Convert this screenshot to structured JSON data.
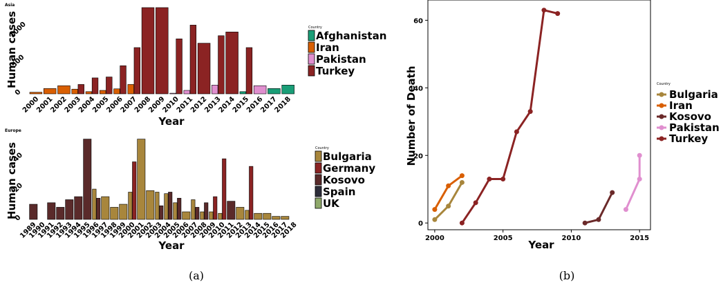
{
  "chart_data": [
    {
      "type": "bar",
      "title": "Asia",
      "xlabel": "Year",
      "ylabel": "Human cases",
      "ylim": [
        0,
        1380
      ],
      "yticks": [
        0,
        500,
        1000
      ],
      "categories": [
        "2000",
        "2001",
        "2002",
        "2003",
        "2004",
        "2005",
        "2006",
        "2007",
        "2008",
        "2009",
        "2010",
        "2011",
        "2012",
        "2013",
        "2014",
        "2015",
        "2016",
        "2017",
        "2018"
      ],
      "legend_title": "Country",
      "legend_position": "right",
      "series": [
        {
          "name": "Afghanistan",
          "color": "#1a9e77",
          "values": [
            0,
            0,
            0,
            0,
            0,
            0,
            0,
            0,
            0,
            0,
            0,
            0,
            0,
            0,
            0,
            35,
            0,
            85,
            140
          ]
        },
        {
          "name": "Iran",
          "color": "#d95f02",
          "values": [
            25,
            85,
            130,
            75,
            35,
            55,
            80,
            150,
            0,
            0,
            0,
            0,
            0,
            0,
            0,
            0,
            0,
            0,
            0
          ]
        },
        {
          "name": "Pakistan",
          "color": "#e08fcf",
          "values": [
            0,
            0,
            0,
            0,
            0,
            0,
            0,
            0,
            0,
            0,
            10,
            55,
            0,
            140,
            0,
            0,
            130,
            0,
            0
          ]
        },
        {
          "name": "Turkey",
          "color": "#8b2323",
          "values": [
            0,
            0,
            0,
            150,
            255,
            270,
            450,
            740,
            1380,
            1380,
            880,
            1100,
            810,
            930,
            990,
            740,
            0,
            0,
            0
          ]
        }
      ]
    },
    {
      "type": "bar",
      "title": "Europe",
      "xlabel": "Year",
      "ylabel": "Human cases",
      "ylim": [
        0,
        56
      ],
      "yticks": [
        0,
        20,
        40
      ],
      "categories": [
        "1989",
        "1990",
        "1991",
        "1992",
        "1993",
        "1994",
        "1995",
        "1996",
        "1997",
        "1998",
        "1999",
        "2000",
        "2001",
        "2002",
        "2003",
        "2004",
        "2005",
        "2006",
        "2007",
        "2008",
        "2009",
        "2010",
        "2011",
        "2012",
        "2013",
        "2014",
        "2015",
        "2016",
        "2017",
        "2018"
      ],
      "legend_title": "Country",
      "legend_position": "right",
      "series": [
        {
          "name": "Bulgaria",
          "color": "#a8863c",
          "values": [
            0,
            0,
            0,
            0,
            0,
            0,
            0,
            20,
            15,
            8,
            10,
            18,
            53,
            19,
            18,
            17,
            11,
            5,
            13,
            5,
            5,
            4,
            0,
            8,
            6,
            4,
            4,
            2,
            2,
            0
          ]
        },
        {
          "name": "Germany",
          "color": "#8b2323",
          "values": [
            0,
            0,
            0,
            0,
            0,
            0,
            0,
            0,
            0,
            0,
            0,
            38,
            0,
            0,
            0,
            0,
            0,
            0,
            0,
            0,
            15,
            40,
            0,
            0,
            35,
            0,
            0,
            0,
            0,
            0
          ]
        },
        {
          "name": "Kosovo",
          "color": "#5a2a2a",
          "values": [
            10,
            0,
            11,
            8,
            13,
            15,
            53,
            14,
            0,
            0,
            0,
            0,
            0,
            0,
            9,
            18,
            14,
            0,
            8,
            11,
            0,
            0,
            12,
            0,
            0,
            0,
            0,
            0,
            0,
            0
          ]
        },
        {
          "name": "Spain",
          "color": "#2d2d3a",
          "values": [
            0,
            0,
            0,
            0,
            0,
            0,
            0,
            0,
            0,
            0,
            0,
            0,
            0,
            0,
            0,
            0,
            0,
            0,
            0,
            0,
            0,
            0,
            0,
            0,
            0,
            0,
            0,
            0,
            0,
            0
          ]
        },
        {
          "name": "UK",
          "color": "#8fa96b",
          "values": [
            0,
            0,
            0,
            0,
            0,
            0,
            0,
            0,
            0,
            0,
            0,
            0,
            0,
            0,
            0,
            0,
            0,
            0,
            0,
            0,
            0,
            0,
            0,
            0,
            0,
            0,
            0,
            0,
            0,
            0
          ]
        }
      ]
    },
    {
      "type": "line",
      "title": "",
      "xlabel": "Year",
      "ylabel": "Number of Death",
      "xlim": [
        1999.5,
        2015.8
      ],
      "ylim": [
        -2,
        66
      ],
      "xticks": [
        2000,
        2005,
        2010,
        2015
      ],
      "yticks": [
        0,
        20,
        40,
        60
      ],
      "legend_title": "Country",
      "legend_position": "right",
      "series": [
        {
          "name": "Bulgaria",
          "color": "#a8863c",
          "x": [
            2000,
            2001,
            2002
          ],
          "y": [
            1,
            5,
            12
          ]
        },
        {
          "name": "Iran",
          "color": "#d95f02",
          "x": [
            2000,
            2001,
            2002
          ],
          "y": [
            4,
            11,
            14
          ]
        },
        {
          "name": "Kosovo",
          "color": "#6b2a2a",
          "x": [
            2011,
            2012,
            2013
          ],
          "y": [
            0,
            1,
            9
          ]
        },
        {
          "name": "Pakistan",
          "color": "#e08fcf",
          "x": [
            2014,
            2015,
            2015
          ],
          "y": [
            4,
            13,
            20
          ]
        },
        {
          "name": "Turkey",
          "color": "#8b2323",
          "x": [
            2002,
            2003,
            2004,
            2005,
            2006,
            2007,
            2008,
            2009
          ],
          "y": [
            0,
            6,
            13,
            13,
            27,
            33,
            63,
            62
          ]
        }
      ]
    }
  ],
  "captions": {
    "a": "(a)",
    "b": "(b)"
  }
}
